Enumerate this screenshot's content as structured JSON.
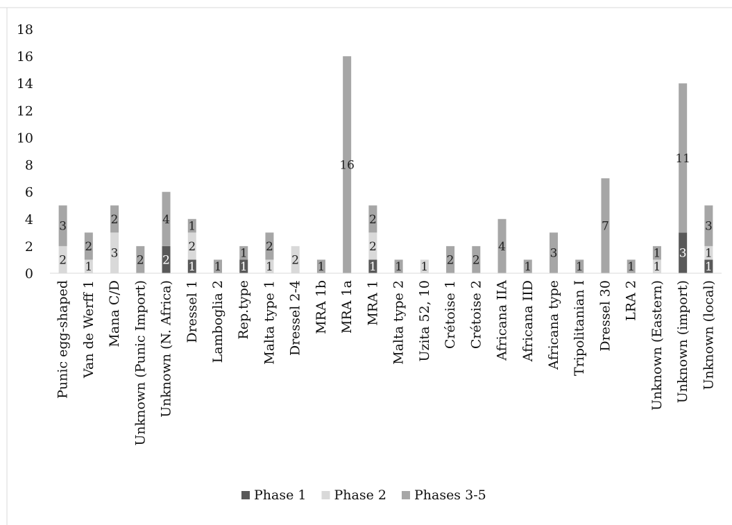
{
  "chart_data": {
    "type": "bar",
    "stacked": true,
    "title": "",
    "xlabel": "",
    "ylabel": "",
    "ylim": [
      0,
      18
    ],
    "yticks": [
      0,
      2,
      4,
      6,
      8,
      10,
      12,
      14,
      16,
      18
    ],
    "grid": false,
    "legend_position": "bottom",
    "categories": [
      "Punic egg-shaped",
      "Van de Werff 1",
      "Mana C/D",
      "Unknown (Punic Import)",
      "Unknown (N. Africa)",
      "Dressel 1",
      "Lamboglia 2",
      "Rep.type",
      "Malta type 1",
      "Dressel 2-4",
      "MRA 1b",
      "MRA 1a",
      "MRA 1",
      "Malta type 2",
      "Uzita 52, 10",
      "Crétoise 1",
      "Crétoise 2",
      "Africana IIA",
      "Africana IID",
      "Africana type",
      "Tripolitanian I",
      "Dressel 30",
      "LRA 2",
      "Unknown (Eastern)",
      "Unknown (import)",
      "Unknown (local)"
    ],
    "series": [
      {
        "name": "Phase 1",
        "color": "#595959",
        "values": [
          0,
          0,
          0,
          0,
          2,
          1,
          0,
          1,
          0,
          0,
          0,
          0,
          1,
          0,
          0,
          0,
          0,
          0,
          0,
          0,
          0,
          0,
          0,
          0,
          3,
          1
        ]
      },
      {
        "name": "Phase 2",
        "color": "#d9d9d9",
        "values": [
          2,
          1,
          3,
          0,
          0,
          2,
          0,
          0,
          1,
          2,
          0,
          0,
          2,
          0,
          1,
          0,
          0,
          0,
          0,
          0,
          0,
          0,
          0,
          1,
          0,
          1
        ]
      },
      {
        "name": "Phases 3-5",
        "color": "#a6a6a6",
        "values": [
          3,
          2,
          2,
          2,
          4,
          1,
          1,
          1,
          2,
          0,
          1,
          16,
          2,
          1,
          0,
          2,
          2,
          4,
          1,
          3,
          1,
          7,
          1,
          1,
          11,
          3
        ]
      }
    ]
  }
}
